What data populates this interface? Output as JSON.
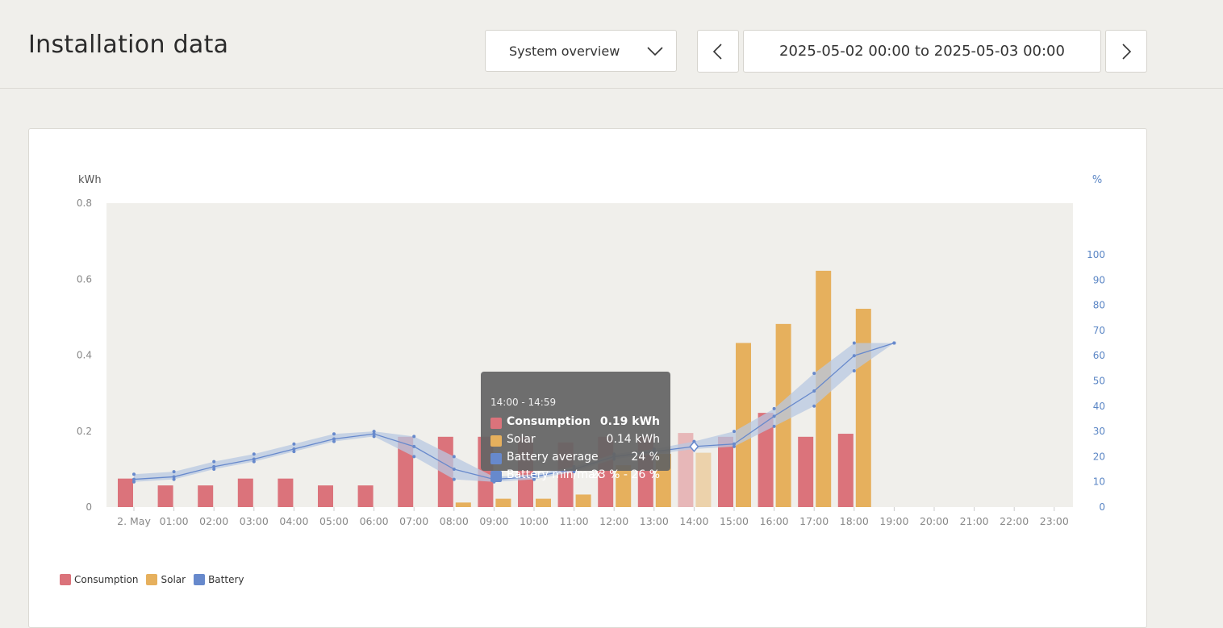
{
  "header": {
    "title": "Installation data",
    "dropdown_label": "System overview",
    "date_range": "2025-05-02 00:00 to 2025-05-03 00:00"
  },
  "colors": {
    "consumption": "#db737b",
    "solar": "#e6b05d",
    "battery": "#6789cc",
    "battery_band": "#b8c8e2",
    "plot_bg": "#f0efeb"
  },
  "legend": [
    {
      "label": "Consumption",
      "color": "#db737b"
    },
    {
      "label": "Solar",
      "color": "#e6b05d"
    },
    {
      "label": "Battery",
      "color": "#6789cc"
    }
  ],
  "tooltip": {
    "range": "14:00 - 14:59",
    "rows": [
      {
        "name": "Consumption",
        "value": "0.19 kWh",
        "color": "#db737b",
        "bold": true
      },
      {
        "name": "Solar",
        "value": "0.14 kWh",
        "color": "#e6b05d",
        "bold": false
      },
      {
        "name": "Battery average",
        "value": "24 %",
        "color": "#6789cc",
        "bold": false
      },
      {
        "name": "Battery min/max",
        "value": "23 % - 26 %",
        "color": "#6789cc",
        "bold": false
      }
    ]
  },
  "chart_data": {
    "type": "bar",
    "categories": [
      "2. May",
      "01:00",
      "02:00",
      "03:00",
      "04:00",
      "05:00",
      "06:00",
      "07:00",
      "08:00",
      "09:00",
      "10:00",
      "11:00",
      "12:00",
      "13:00",
      "14:00",
      "15:00",
      "16:00",
      "17:00",
      "18:00",
      "19:00",
      "20:00",
      "21:00",
      "22:00",
      "23:00"
    ],
    "left_axis": {
      "label": "kWh",
      "ticks": [
        "0",
        "0.2",
        "0.4",
        "0.6",
        "0.8"
      ],
      "range": [
        0,
        0.8
      ]
    },
    "right_axis": {
      "label": "%",
      "ticks": [
        "0",
        "10",
        "20",
        "30",
        "40",
        "50",
        "60",
        "70",
        "80",
        "90",
        "100"
      ],
      "range": [
        0,
        120
      ]
    },
    "series": [
      {
        "name": "Consumption",
        "axis": "left",
        "values": [
          0.075,
          0.057,
          0.057,
          0.075,
          0.075,
          0.057,
          0.057,
          0.185,
          0.185,
          0.185,
          0.185,
          0.17,
          0.185,
          0.185,
          0.195,
          0.185,
          0.248,
          0.185,
          0.193,
          null,
          null,
          null,
          null,
          null
        ]
      },
      {
        "name": "Solar",
        "axis": "left",
        "values": [
          0,
          0,
          0,
          0,
          0,
          0,
          0,
          0,
          0.012,
          0.022,
          0.022,
          0.033,
          0.11,
          0.14,
          0.143,
          0.432,
          0.482,
          0.622,
          0.522,
          null,
          null,
          null,
          null,
          null
        ]
      },
      {
        "name": "Battery average",
        "axis": "right",
        "values": [
          11,
          12,
          16,
          19,
          23,
          27,
          29,
          24,
          15,
          11,
          12,
          15,
          20,
          22,
          24,
          25,
          36,
          46,
          60,
          65,
          null,
          null,
          null,
          null
        ]
      },
      {
        "name": "Battery min",
        "axis": "right",
        "values": [
          10,
          11,
          15,
          18,
          22,
          26,
          28,
          20,
          11,
          10,
          11,
          14,
          19,
          21,
          23,
          24,
          32,
          40,
          54,
          65,
          null,
          null,
          null,
          null
        ]
      },
      {
        "name": "Battery max",
        "axis": "right",
        "values": [
          13,
          14,
          18,
          21,
          25,
          29,
          30,
          28,
          20,
          12,
          13,
          16,
          21,
          23,
          26,
          30,
          39,
          53,
          65,
          65,
          null,
          null,
          null,
          null
        ]
      }
    ],
    "highlighted_category": "14:00"
  }
}
